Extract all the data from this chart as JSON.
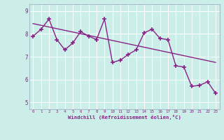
{
  "title": "",
  "xlabel": "Windchill (Refroidissement éolien,°C)",
  "ylabel": "",
  "background_color": "#cceee8",
  "line_color": "#882288",
  "xlim": [
    -0.5,
    23.5
  ],
  "ylim": [
    4.7,
    9.3
  ],
  "xticks": [
    0,
    1,
    2,
    3,
    4,
    5,
    6,
    7,
    8,
    9,
    10,
    11,
    12,
    13,
    14,
    15,
    16,
    17,
    18,
    19,
    20,
    21,
    22,
    23
  ],
  "yticks": [
    5,
    6,
    7,
    8,
    9
  ],
  "data_x": [
    0,
    1,
    2,
    3,
    4,
    5,
    6,
    7,
    8,
    9,
    10,
    11,
    12,
    13,
    14,
    15,
    16,
    17,
    18,
    19,
    20,
    21,
    22,
    23
  ],
  "data_y": [
    7.9,
    8.2,
    8.65,
    7.75,
    7.3,
    7.6,
    8.1,
    7.9,
    7.75,
    8.65,
    6.75,
    6.85,
    7.1,
    7.3,
    8.05,
    8.2,
    7.8,
    7.75,
    6.6,
    6.55,
    5.7,
    5.75,
    5.9,
    5.4
  ],
  "trend_x": [
    0,
    23
  ],
  "trend_y": [
    8.45,
    6.75
  ],
  "grid_color": "#ffffff",
  "spine_color": "#aabbcc"
}
